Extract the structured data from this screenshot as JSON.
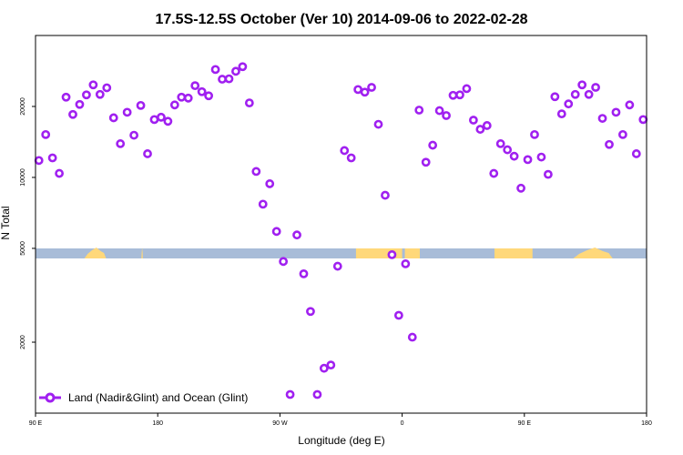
{
  "chart_data": {
    "type": "scatter",
    "title": "17.5S-12.5S October (Ver 10)   2014-09-06 to 2022-02-28",
    "xlabel": "Longitude (deg E)",
    "ylabel": "N Total",
    "x_scale": "linear",
    "y_scale": "log",
    "xlim": [
      90,
      540
    ],
    "ylim": [
      1000,
      40000
    ],
    "x_ticks": [
      {
        "value": 90,
        "label": "90 E"
      },
      {
        "value": 180,
        "label": "180"
      },
      {
        "value": 270,
        "label": "90 W"
      },
      {
        "value": 360,
        "label": "0"
      },
      {
        "value": 450,
        "label": "90 E"
      },
      {
        "value": 540,
        "label": "180"
      }
    ],
    "y_ticks": [
      {
        "value": 2000,
        "label": "2000"
      },
      {
        "value": 5000,
        "label": "5000"
      },
      {
        "value": 10000,
        "label": "10000"
      },
      {
        "value": 20000,
        "label": "20000"
      }
    ],
    "grid": false,
    "legend": {
      "position": "bottom-left",
      "entries": [
        "Land (Nadir&Glint) and Ocean (Glint)"
      ]
    },
    "series": [
      {
        "name": "Land (Nadir&Glint) and Ocean (Glint)",
        "color": "#a020f0",
        "marker": "open-circle",
        "points": [
          [
            92.5,
            11800
          ],
          [
            97.5,
            15200
          ],
          [
            102.5,
            12100
          ],
          [
            107.5,
            10400
          ],
          [
            112.5,
            21900
          ],
          [
            117.5,
            18500
          ],
          [
            122.5,
            20400
          ],
          [
            127.5,
            22400
          ],
          [
            132.5,
            24700
          ],
          [
            137.5,
            22500
          ],
          [
            142.5,
            24000
          ],
          [
            147.5,
            17900
          ],
          [
            152.5,
            13900
          ],
          [
            157.5,
            18900
          ],
          [
            162.5,
            15100
          ],
          [
            167.5,
            20200
          ],
          [
            172.5,
            12600
          ],
          [
            177.5,
            17600
          ],
          [
            182.5,
            18000
          ],
          [
            187.5,
            17300
          ],
          [
            192.5,
            20300
          ],
          [
            197.5,
            21900
          ],
          [
            202.5,
            21700
          ],
          [
            207.5,
            24500
          ],
          [
            212.5,
            23100
          ],
          [
            217.5,
            22200
          ],
          [
            222.5,
            28700
          ],
          [
            227.5,
            26100
          ],
          [
            232.5,
            26200
          ],
          [
            237.5,
            28200
          ],
          [
            242.5,
            29500
          ],
          [
            247.5,
            20700
          ],
          [
            252.5,
            10600
          ],
          [
            257.5,
            7700
          ],
          [
            262.5,
            9400
          ],
          [
            267.5,
            5900
          ],
          [
            272.5,
            4400
          ],
          [
            277.5,
            1200
          ],
          [
            282.5,
            5700
          ],
          [
            287.5,
            3900
          ],
          [
            292.5,
            2700
          ],
          [
            297.5,
            1200
          ],
          [
            302.5,
            1550
          ],
          [
            307.5,
            1600
          ],
          [
            312.5,
            4200
          ],
          [
            317.5,
            13000
          ],
          [
            322.5,
            12100
          ],
          [
            327.5,
            23600
          ],
          [
            332.5,
            23000
          ],
          [
            337.5,
            24100
          ],
          [
            342.5,
            16800
          ],
          [
            347.5,
            8400
          ],
          [
            352.5,
            4700
          ],
          [
            357.5,
            2600
          ],
          [
            362.5,
            4300
          ],
          [
            367.5,
            2100
          ],
          [
            372.5,
            19300
          ],
          [
            377.5,
            11600
          ],
          [
            382.5,
            13700
          ],
          [
            387.5,
            19200
          ],
          [
            392.5,
            18300
          ],
          [
            397.5,
            22300
          ],
          [
            402.5,
            22400
          ],
          [
            407.5,
            23800
          ],
          [
            412.5,
            17500
          ],
          [
            417.5,
            16000
          ],
          [
            422.5,
            16600
          ],
          [
            427.5,
            10400
          ],
          [
            432.5,
            13900
          ],
          [
            437.5,
            13100
          ],
          [
            442.5,
            12300
          ],
          [
            447.5,
            9000
          ],
          [
            452.5,
            11900
          ],
          [
            457.5,
            15200
          ],
          [
            462.5,
            12200
          ],
          [
            467.5,
            10300
          ],
          [
            472.5,
            22000
          ],
          [
            477.5,
            18600
          ],
          [
            482.5,
            20500
          ],
          [
            487.5,
            22500
          ],
          [
            492.5,
            24700
          ],
          [
            497.5,
            22500
          ],
          [
            502.5,
            24100
          ],
          [
            507.5,
            17800
          ],
          [
            512.5,
            13800
          ],
          [
            517.5,
            18900
          ],
          [
            522.5,
            15200
          ],
          [
            527.5,
            20300
          ],
          [
            532.5,
            12600
          ],
          [
            537.5,
            17600
          ]
        ]
      }
    ],
    "map_strip": {
      "ocean_color": "#a8bcd8",
      "land_color": "#ffd87a",
      "land_spans": [
        [
          326,
          360
        ],
        [
          362,
          373
        ],
        [
          428,
          456
        ],
        [
          430,
          441
        ],
        [
          443,
          444
        ],
        [
          446,
          449
        ],
        [
          449,
          453
        ]
      ],
      "land_bumps": [
        [
          126,
          142
        ],
        [
          168,
          169
        ],
        [
          486,
          515
        ]
      ]
    }
  }
}
